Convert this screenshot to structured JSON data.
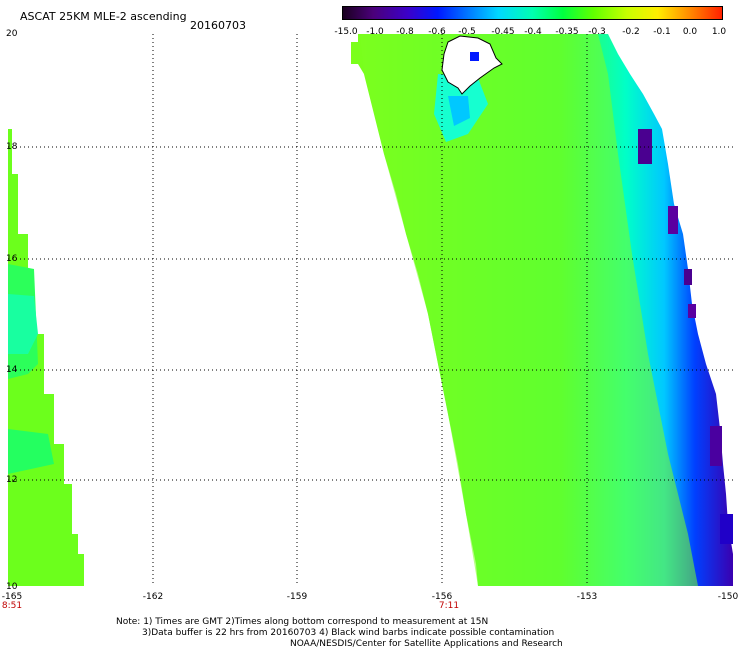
{
  "header": {
    "title": "ASCAT 25KM MLE-2 ascending",
    "date": "20160703"
  },
  "colorbar": {
    "labels": [
      "-15.0",
      "-1.0",
      "-0.8",
      "-0.6",
      "-0.5",
      "-0.45",
      "-0.4",
      "-0.35",
      "-0.3",
      "-0.2",
      "-0.1",
      "0.0",
      "1.0"
    ],
    "colors": [
      "#2a0033",
      "#5a0090",
      "#2000c8",
      "#0030ff",
      "#0090ff",
      "#00e0ff",
      "#00ffc0",
      "#20ff40",
      "#70ff00",
      "#c8ff00",
      "#ffff00",
      "#ffa000",
      "#ff2000"
    ]
  },
  "axes": {
    "lat_labels": [
      "20",
      "18",
      "16",
      "14",
      "12",
      "10"
    ],
    "lon_labels": [
      "-165",
      "-162",
      "-159",
      "-156",
      "-153",
      "-150"
    ],
    "time_labels": [
      "8:51",
      "7:11"
    ]
  },
  "notes": {
    "line1": "Note: 1) Times are GMT 2)Times along bottom correspond to measurement at 15N",
    "line2": "3)Data buffer is 22 hrs from 20160703 4) Black wind barbs indicate possible contamination",
    "line3": "NOAA/NESDIS/Center for Satellite Applications and Research"
  }
}
